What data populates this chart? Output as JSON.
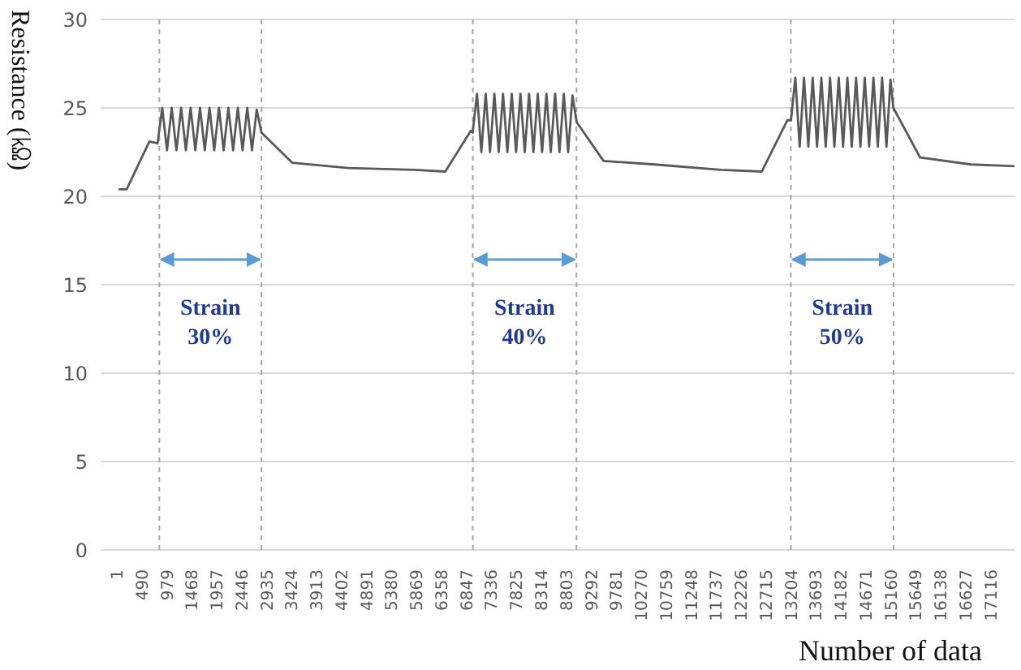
{
  "chart_data": {
    "type": "line",
    "ylabel": "Resistance (㏀)",
    "xlabel": "Number of data",
    "x": [
      1,
      160,
      605,
      765,
      857,
      950,
      1042,
      1135,
      1227,
      1320,
      1412,
      1505,
      1597,
      1690,
      1782,
      1875,
      1967,
      2060,
      2152,
      2245,
      2337,
      2430,
      2522,
      2615,
      2707,
      2801,
      3400,
      4500,
      5800,
      6400,
      6900,
      6937,
      7022,
      7107,
      7192,
      7277,
      7362,
      7447,
      7532,
      7617,
      7702,
      7787,
      7872,
      7957,
      8042,
      8127,
      8212,
      8297,
      8382,
      8467,
      8552,
      8637,
      8722,
      8807,
      8892,
      8973,
      9500,
      10500,
      11800,
      12600,
      13100,
      13172,
      13257,
      13342,
      13427,
      13512,
      13597,
      13682,
      13767,
      13852,
      13937,
      14022,
      14107,
      14192,
      14277,
      14362,
      14447,
      14532,
      14617,
      14702,
      14787,
      14872,
      14957,
      15042,
      15120,
      15177,
      15700,
      16700,
      17550
    ],
    "series": [
      {
        "color": "#595959",
        "values": [
          20.4,
          20.4,
          23.1,
          23.0,
          25.0,
          22.6,
          25.0,
          22.6,
          25.0,
          22.6,
          25.0,
          22.6,
          25.0,
          22.6,
          25.0,
          22.6,
          25.0,
          22.6,
          25.0,
          22.6,
          25.0,
          22.6,
          25.0,
          22.6,
          24.9,
          23.6,
          21.9,
          21.6,
          21.5,
          21.4,
          23.7,
          23.6,
          25.8,
          22.5,
          25.8,
          22.5,
          25.8,
          22.5,
          25.8,
          22.5,
          25.8,
          22.5,
          25.8,
          22.5,
          25.8,
          22.5,
          25.8,
          22.5,
          25.8,
          22.5,
          25.8,
          22.5,
          25.8,
          22.5,
          25.7,
          24.2,
          22.0,
          21.8,
          21.5,
          21.4,
          24.3,
          24.3,
          26.7,
          22.8,
          26.7,
          22.8,
          26.7,
          22.8,
          26.7,
          22.8,
          26.7,
          22.8,
          26.7,
          22.8,
          26.7,
          22.8,
          26.7,
          22.8,
          26.7,
          22.8,
          26.7,
          22.8,
          26.7,
          22.8,
          26.6,
          25.0,
          22.2,
          21.8,
          21.7
        ]
      }
    ],
    "xlim": [
      -350,
      17550
    ],
    "xticks": [
      1,
      490,
      979,
      1468,
      1957,
      2446,
      2935,
      3424,
      3913,
      4402,
      4891,
      5380,
      5869,
      6358,
      6847,
      7336,
      7825,
      8314,
      8803,
      9292,
      9781,
      10270,
      10759,
      11248,
      11737,
      12226,
      12715,
      13204,
      13693,
      14182,
      14671,
      15160,
      15649,
      16138,
      16627,
      17116
    ],
    "ylim": [
      0,
      30
    ],
    "yticks": [
      0,
      5,
      10,
      15,
      20,
      25,
      30
    ],
    "grid": "y",
    "legend": false,
    "marker": "none",
    "line_style": "solid",
    "ref_lines": [
      {
        "axis": "x",
        "value": 800,
        "color": "#a6a6a6",
        "line_style": "dashed"
      },
      {
        "axis": "x",
        "value": 2800,
        "color": "#a6a6a6",
        "line_style": "dashed"
      },
      {
        "axis": "x",
        "value": 6940,
        "color": "#a6a6a6",
        "line_style": "dashed"
      },
      {
        "axis": "x",
        "value": 8970,
        "color": "#a6a6a6",
        "line_style": "dashed"
      },
      {
        "axis": "x",
        "value": 13170,
        "color": "#a6a6a6",
        "line_style": "dashed"
      },
      {
        "axis": "x",
        "value": 15180,
        "color": "#a6a6a6",
        "line_style": "dashed"
      }
    ],
    "annotations": [
      "Strain 30%",
      "Strain 40%",
      "Strain 50%"
    ]
  }
}
